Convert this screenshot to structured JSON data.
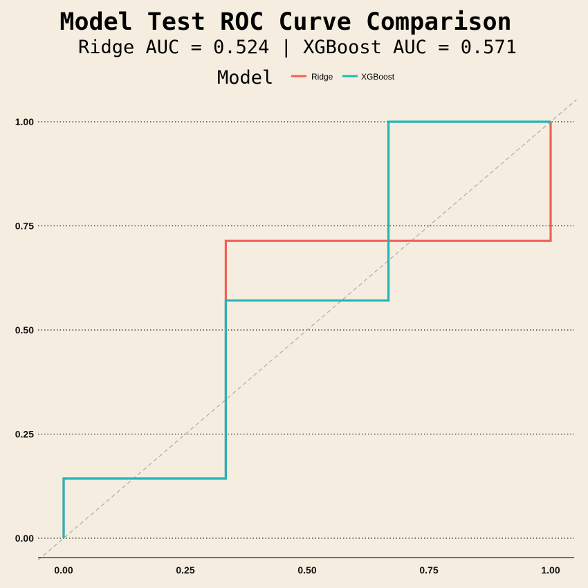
{
  "chart_data": {
    "type": "line",
    "title": "Model Test ROC Curve Comparison",
    "subtitle": "Ridge AUC = 0.524 | XGBoost AUC = 0.571",
    "legend": {
      "title": "Model",
      "position": "top"
    },
    "xlabel": "",
    "ylabel": "",
    "xlim": [
      0,
      1
    ],
    "ylim": [
      0,
      1
    ],
    "x_ticks": [
      "0.00",
      "0.25",
      "0.50",
      "0.75",
      "1.00"
    ],
    "y_ticks": [
      "0.00",
      "0.25",
      "0.50",
      "0.75",
      "1.00"
    ],
    "grid": "horizontal dotted",
    "reference_line": "diagonal dashed",
    "series": [
      {
        "name": "Ridge",
        "color": "#ee6158",
        "x": [
          0,
          0,
          0.333,
          0.333,
          0.333,
          1.0,
          1.0
        ],
        "y": [
          0,
          0.143,
          0.143,
          0.571,
          0.714,
          0.714,
          1.0
        ]
      },
      {
        "name": "XGBoost",
        "color": "#22b5b8",
        "x": [
          0,
          0,
          0.333,
          0.333,
          0.667,
          0.667,
          1.0
        ],
        "y": [
          0,
          0.143,
          0.143,
          0.571,
          0.571,
          1.0,
          1.0
        ]
      }
    ]
  }
}
